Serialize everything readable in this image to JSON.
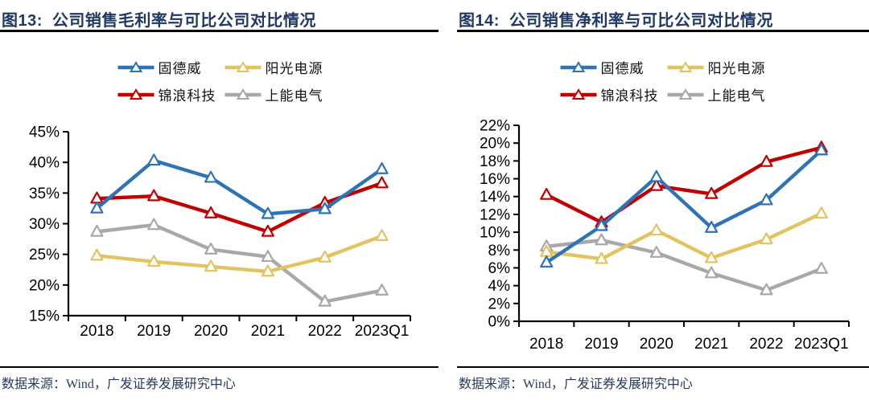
{
  "page": {
    "background": "#ffffff"
  },
  "colors": {
    "title_text": "#1F3864",
    "rule": "#000000",
    "axis": "#000000",
    "axis_label": "#000000",
    "source_text": "#2A3A5E",
    "marker_fill": "#ffffff"
  },
  "panels": [
    {
      "title_prefix": "图13:",
      "title": "公司销售毛利率与可比公司对比情况",
      "source": "数据来源：Wind，广发证券发展研究中心"
    },
    {
      "title_prefix": "图14:",
      "title": "公司销售净利率与可比公司对比情况",
      "source": "数据来源：Wind，广发证券发展研究中心"
    }
  ],
  "chart_data": [
    {
      "type": "line",
      "title": "公司销售毛利率与可比公司对比情况",
      "categories": [
        "2018",
        "2019",
        "2020",
        "2021",
        "2022",
        "2023Q1"
      ],
      "series": [
        {
          "name": "固德威",
          "color": "#2E74B5",
          "values": [
            32.5,
            40.3,
            37.5,
            31.6,
            32.4,
            38.9
          ]
        },
        {
          "name": "阳光电源",
          "color": "#E3C35F",
          "values": [
            24.8,
            23.8,
            23.0,
            22.2,
            24.5,
            28.0
          ]
        },
        {
          "name": "锦浪科技",
          "color": "#C00000",
          "values": [
            34.1,
            34.5,
            31.7,
            28.7,
            33.4,
            36.6
          ]
        },
        {
          "name": "上能电气",
          "color": "#A8A8A8",
          "values": [
            28.7,
            29.8,
            25.8,
            24.6,
            17.3,
            19.1
          ]
        }
      ],
      "ylim": [
        15,
        45
      ],
      "ytick_step": 5,
      "ytick_suffix": "%",
      "xlabel": "",
      "ylabel": "",
      "grid": false,
      "legend_position": "top",
      "marker": "triangle",
      "draw_order": [
        3,
        1,
        2,
        0
      ]
    },
    {
      "type": "line",
      "title": "公司销售净利率与可比公司对比情况",
      "categories": [
        "2018",
        "2019",
        "2020",
        "2021",
        "2022",
        "2023Q1"
      ],
      "series": [
        {
          "name": "固德威",
          "color": "#2E74B5",
          "values": [
            6.6,
            10.7,
            16.2,
            10.5,
            13.6,
            19.2
          ]
        },
        {
          "name": "阳光电源",
          "color": "#E3C35F",
          "values": [
            7.8,
            7.0,
            10.2,
            7.1,
            9.2,
            12.1
          ]
        },
        {
          "name": "锦浪科技",
          "color": "#C00000",
          "values": [
            14.2,
            11.1,
            15.2,
            14.3,
            17.9,
            19.5
          ]
        },
        {
          "name": "上能电气",
          "color": "#A8A8A8",
          "values": [
            8.4,
            9.1,
            7.7,
            5.4,
            3.5,
            5.9
          ]
        }
      ],
      "ylim": [
        0,
        22
      ],
      "ytick_step": 2,
      "ytick_suffix": "%",
      "xlabel": "",
      "ylabel": "",
      "grid": false,
      "legend_position": "top",
      "marker": "triangle",
      "draw_order": [
        3,
        1,
        2,
        0
      ]
    }
  ]
}
